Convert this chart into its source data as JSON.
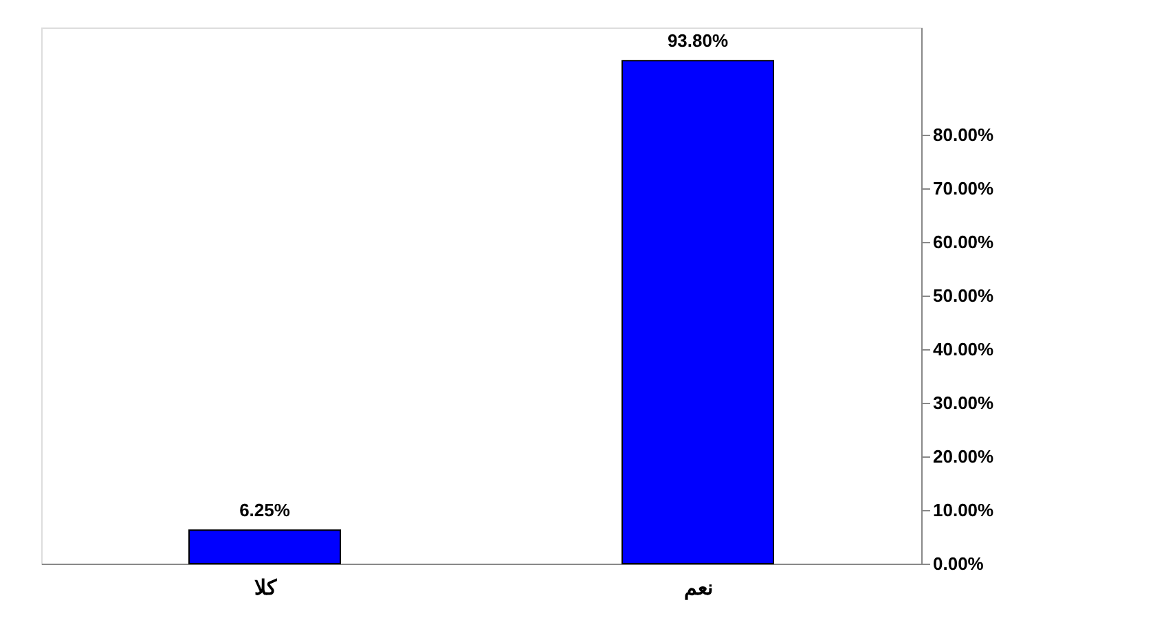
{
  "chart_data": {
    "type": "bar",
    "categories": [
      "كلا",
      "نعم"
    ],
    "values": [
      6.25,
      93.8
    ],
    "color": "#0000ff",
    "value_labels": [
      "6.25%",
      "93.80%"
    ],
    "ylim": [
      0,
      100
    ],
    "yticks": [
      {
        "value": 0,
        "label": "0.00%"
      },
      {
        "value": 10,
        "label": "10.00%"
      },
      {
        "value": 20,
        "label": "20.00%"
      },
      {
        "value": 30,
        "label": "30.00%"
      },
      {
        "value": 40,
        "label": "40.00%"
      },
      {
        "value": 50,
        "label": "50.00%"
      },
      {
        "value": 60,
        "label": "60.00%"
      },
      {
        "value": 70,
        "label": "70.00%"
      },
      {
        "value": 80,
        "label": "80.00%"
      }
    ],
    "grid": false
  }
}
